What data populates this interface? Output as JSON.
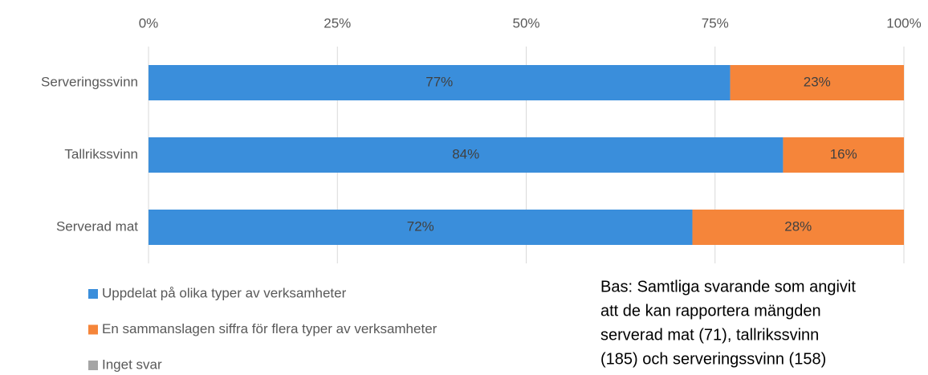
{
  "chart_data": {
    "type": "stacked_barh",
    "categories": [
      "Serveringssvinn",
      "Tallrikssvinn",
      "Serverad mat"
    ],
    "series": [
      {
        "name": "Uppdelat på olika typer av verksamheter",
        "color": "#3a8edb",
        "values": [
          77,
          84,
          72
        ],
        "value_labels": [
          "77%",
          "84%",
          "72%"
        ]
      },
      {
        "name": "En sammanslagen siffra för flera typer av verksamheter",
        "color": "#f5853a",
        "values": [
          23,
          16,
          28
        ],
        "value_labels": [
          "23%",
          "16%",
          "28%"
        ]
      },
      {
        "name": "Inget svar",
        "color": "#a5a5a5",
        "values": [
          0,
          0,
          0
        ]
      }
    ],
    "xlim": [
      0,
      100
    ],
    "xticks": [
      {
        "value": 0,
        "label": "0%"
      },
      {
        "value": 25,
        "label": "25%"
      },
      {
        "value": 50,
        "label": "50%"
      },
      {
        "value": 75,
        "label": "75%"
      },
      {
        "value": 100,
        "label": "100%"
      }
    ],
    "grid": true,
    "legend": "bottom-left",
    "note": [
      "Bas: Samtliga svarande som angivit",
      "att de kan rapportera mängden",
      "serverad mat (71), tallrikssvinn",
      "(185) och serveringssvinn (158)"
    ]
  }
}
